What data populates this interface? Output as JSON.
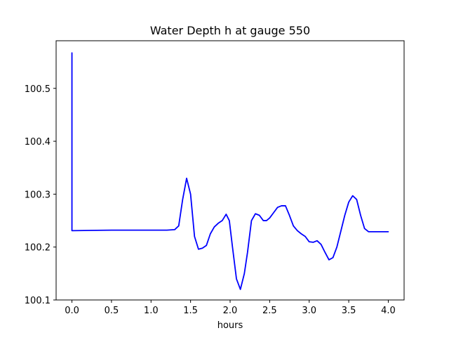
{
  "chart_data": {
    "type": "line",
    "title": "Water Depth h at gauge 550",
    "xlabel": "hours",
    "ylabel": "",
    "xlim": [
      -0.2,
      4.2
    ],
    "ylim": [
      100.1,
      100.59
    ],
    "grid": false,
    "xticks": [
      0.0,
      0.5,
      1.0,
      1.5,
      2.0,
      2.5,
      3.0,
      3.5,
      4.0
    ],
    "xtick_labels": [
      "0.0",
      "0.5",
      "1.0",
      "1.5",
      "2.0",
      "2.5",
      "3.0",
      "3.5",
      "4.0"
    ],
    "yticks": [
      100.1,
      100.2,
      100.3,
      100.4,
      100.5
    ],
    "ytick_labels": [
      "100.1",
      "100.2",
      "100.3",
      "100.4",
      "100.5"
    ],
    "series": [
      {
        "color": "#0000ff",
        "x": [
          0.0,
          0.0,
          0.005,
          0.5,
          1.0,
          1.2,
          1.3,
          1.35,
          1.4,
          1.45,
          1.5,
          1.55,
          1.6,
          1.65,
          1.7,
          1.75,
          1.8,
          1.85,
          1.9,
          1.95,
          1.99,
          2.03,
          2.08,
          2.13,
          2.18,
          2.22,
          2.27,
          2.32,
          2.37,
          2.42,
          2.46,
          2.5,
          2.55,
          2.6,
          2.65,
          2.7,
          2.75,
          2.8,
          2.85,
          2.9,
          2.95,
          3.0,
          3.05,
          3.1,
          3.15,
          3.2,
          3.25,
          3.3,
          3.35,
          3.4,
          3.45,
          3.5,
          3.55,
          3.6,
          3.65,
          3.7,
          3.75,
          3.8,
          3.85,
          3.9,
          3.95,
          4.0
        ],
        "y": [
          100.567,
          100.231,
          100.231,
          100.232,
          100.232,
          100.232,
          100.233,
          100.24,
          100.29,
          100.33,
          100.3,
          100.22,
          100.196,
          100.198,
          100.203,
          100.225,
          100.238,
          100.245,
          100.25,
          100.262,
          100.25,
          100.2,
          100.14,
          100.12,
          100.15,
          100.19,
          100.25,
          100.263,
          100.26,
          100.25,
          100.25,
          100.255,
          100.265,
          100.275,
          100.278,
          100.278,
          100.26,
          100.24,
          100.231,
          100.225,
          100.22,
          100.21,
          100.209,
          100.212,
          100.205,
          100.19,
          100.176,
          100.18,
          100.2,
          100.23,
          100.26,
          100.285,
          100.297,
          100.29,
          100.26,
          100.235,
          100.229,
          100.229,
          100.229,
          100.229,
          100.229,
          100.229
        ]
      }
    ]
  }
}
